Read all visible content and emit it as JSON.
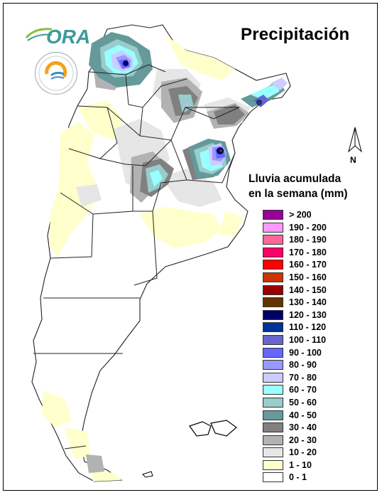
{
  "title": "Precipitación",
  "logo": {
    "text": "ORA",
    "seal_text": "SERVICIO METEOROLOGICO NACIONAL ARGENTINA"
  },
  "north_label": "N",
  "legend_title_line1": "Lluvia acumulada",
  "legend_title_line2": "en la semana (mm)",
  "legend": [
    {
      "label": "> 200",
      "color": "#990099"
    },
    {
      "label": "190 - 200",
      "color": "#ff99ff"
    },
    {
      "label": "180 - 190",
      "color": "#ff6699"
    },
    {
      "label": "170 - 180",
      "color": "#ff0066"
    },
    {
      "label": "160 - 170",
      "color": "#ff0000"
    },
    {
      "label": "150 - 160",
      "color": "#cc3300"
    },
    {
      "label": "140 - 150",
      "color": "#990000"
    },
    {
      "label": "130 - 140",
      "color": "#663300"
    },
    {
      "label": "120 - 130",
      "color": "#000066"
    },
    {
      "label": "110 - 120",
      "color": "#003399"
    },
    {
      "label": "100 - 110",
      "color": "#6666cc"
    },
    {
      "label": "90 - 100",
      "color": "#6666ff"
    },
    {
      "label": "80 - 90",
      "color": "#9999ff"
    },
    {
      "label": "70 - 80",
      "color": "#ccccff"
    },
    {
      "label": "60 - 70",
      "color": "#99ffff"
    },
    {
      "label": "50 - 60",
      "color": "#99cccc"
    },
    {
      "label": "40 - 50",
      "color": "#669999"
    },
    {
      "label": "30 - 40",
      "color": "#808080"
    },
    {
      "label": "20 - 30",
      "color": "#b2b2b2"
    },
    {
      "label": "10 - 20",
      "color": "#e6e6e6"
    },
    {
      "label": "1 - 10",
      "color": "#ffffcc"
    },
    {
      "label": "0 - 1",
      "color": "#ffffff"
    }
  ]
}
